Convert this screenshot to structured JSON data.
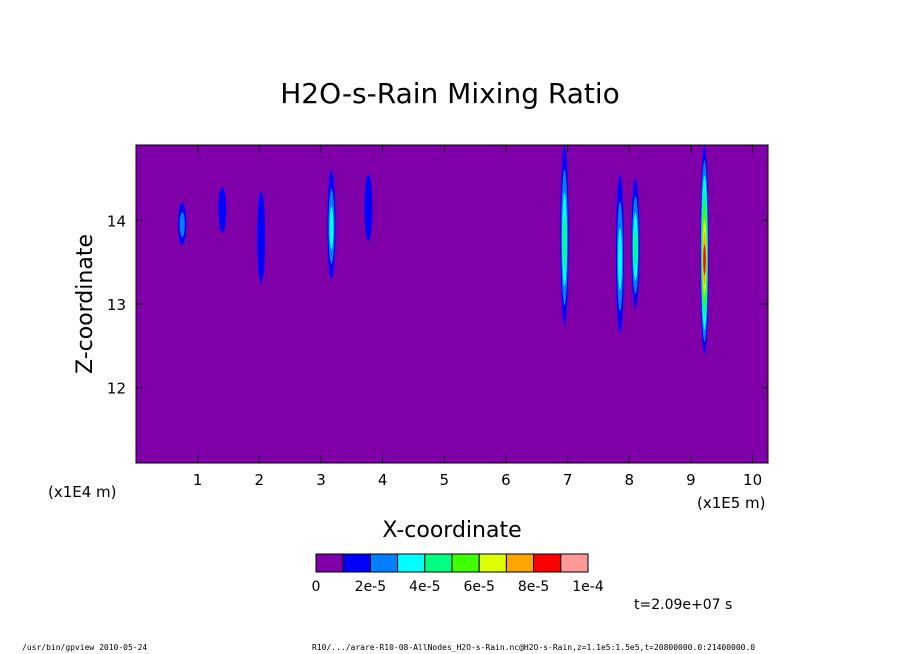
{
  "footer": {
    "left": "/usr/bin/gpview  2010-05-24",
    "right": "R10/.../arare-R10-08-AllNodes_H2O-s-Rain.nc@H2O-s-Rain,z=1.1e5:1.5e5,t=20800000.0:21400000.0"
  },
  "time_label": "t=2.09e+07 s",
  "colors": {
    "levels": [
      "#7f00a8",
      "#0000ff",
      "#0080ff",
      "#00ffff",
      "#00ff80",
      "#40ff00",
      "#ddff00",
      "#ffa500",
      "#ff0000",
      "#ff9999"
    ]
  },
  "chart_data": {
    "type": "heatmap",
    "title": "H2O-s-Rain Mixing Ratio",
    "xlabel": "X-coordinate",
    "ylabel": "Z-coordinate",
    "x_scale_label": "(x1E5 m)",
    "y_scale_label": "(x1E4 m)",
    "xlim": [
      0,
      10.25
    ],
    "ylim": [
      11.1,
      14.9
    ],
    "x_ticks": [
      1,
      2,
      3,
      4,
      5,
      6,
      7,
      8,
      9,
      10
    ],
    "y_ticks": [
      12,
      13,
      14
    ],
    "colorbar": {
      "range": [
        0,
        0.0001
      ],
      "levels": 10,
      "tick_labels": [
        "0",
        "2e-5",
        "4e-5",
        "6e-5",
        "8e-5",
        "1e-4"
      ]
    },
    "features": [
      {
        "x": 0.75,
        "z_min": 13.7,
        "z_max": 14.22,
        "peak": 2.2e-05
      },
      {
        "x": 1.4,
        "z_min": 13.85,
        "z_max": 14.4,
        "peak": 1.2e-05
      },
      {
        "x": 2.03,
        "z_min": 13.25,
        "z_max": 14.35,
        "peak": 1.2e-05
      },
      {
        "x": 3.17,
        "z_min": 13.3,
        "z_max": 14.6,
        "peak": 3.5e-05
      },
      {
        "x": 3.77,
        "z_min": 13.75,
        "z_max": 14.55,
        "peak": 1.5e-05
      },
      {
        "x": 6.95,
        "z_min": 12.75,
        "z_max": 14.9,
        "peak": 4.5e-05
      },
      {
        "x": 7.85,
        "z_min": 12.65,
        "z_max": 14.55,
        "peak": 3.5e-05
      },
      {
        "x": 8.1,
        "z_min": 12.95,
        "z_max": 14.5,
        "peak": 4e-05
      },
      {
        "x": 9.22,
        "z_min": 12.4,
        "z_max": 14.9,
        "peak": 8.5e-05
      }
    ]
  }
}
